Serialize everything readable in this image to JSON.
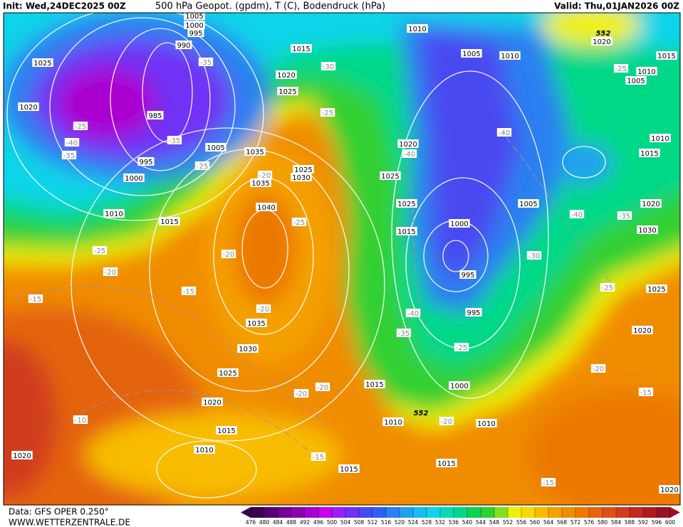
{
  "header": {
    "init": "Init: Wed,24DEC2025 00Z",
    "title": "500 hPa Geopot. (gpdm), T (C), Bodendruck (hPa)",
    "valid": "Valid: Thu,01JAN2026 00Z"
  },
  "map": {
    "pressure_labels": [
      1005,
      1000,
      995,
      990,
      985,
      995,
      1000,
      1010,
      1015,
      1025,
      1020,
      1015,
      1020,
      1025,
      1005,
      1035,
      1030,
      1025,
      1035,
      1040,
      1035,
      1030,
      1025,
      1020,
      1015,
      1010,
      1015,
      1010,
      1015,
      1015,
      1020,
      1020,
      1010,
      1000,
      995,
      995,
      1000,
      1005,
      1010,
      1005,
      1010,
      1020,
      1025,
      1025,
      1015,
      1020,
      1010,
      1005,
      1015,
      1010,
      1015,
      1020,
      1030,
      1025,
      1020
    ],
    "temperature_labels": [
      -25,
      -40,
      -35,
      -35,
      -35,
      -25,
      -20,
      -25,
      -20,
      -20,
      -15,
      -15,
      -20,
      -25,
      -30,
      -40,
      -40,
      -40,
      -35,
      -30,
      -25,
      -25,
      -40,
      -35,
      -25,
      -20,
      -20,
      -20,
      -20,
      -15,
      -15,
      -15,
      -10,
      -25
    ],
    "height_labels": [
      552,
      552
    ]
  },
  "legend": {
    "ticks": [
      476,
      480,
      484,
      488,
      492,
      496,
      500,
      504,
      508,
      512,
      516,
      520,
      524,
      528,
      532,
      536,
      540,
      544,
      548,
      552,
      556,
      560,
      564,
      568,
      572,
      576,
      580,
      584,
      588,
      592,
      596,
      600
    ],
    "colors": [
      "#3c0050",
      "#550070",
      "#700090",
      "#8c00b0",
      "#aa00d0",
      "#c400ec",
      "#9a1ef5",
      "#7030f5",
      "#4a48f0",
      "#3060ef",
      "#2a80f0",
      "#20a0f0",
      "#18bcf0",
      "#10d4e8",
      "#00dcb8",
      "#00d888",
      "#10d050",
      "#30d030",
      "#80e020",
      "#f0f000",
      "#f8d800",
      "#f8bc00",
      "#f4a000",
      "#f08c00",
      "#ec7800",
      "#e46410",
      "#dc5018",
      "#d03c1c",
      "#c02820",
      "#b01820",
      "#9c1024"
    ]
  },
  "footer": {
    "source": "Data: GFS OPER 0.250°",
    "site": "WWW.WETTERZENTRALE.DE"
  }
}
